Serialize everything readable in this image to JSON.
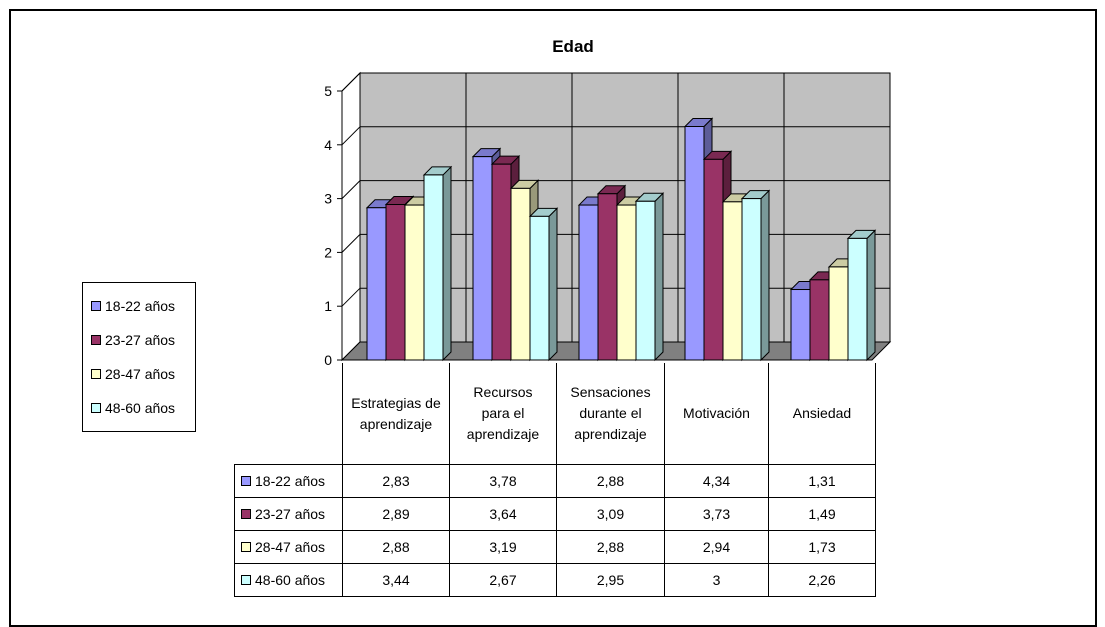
{
  "chart_data": {
    "type": "bar",
    "title": "Edad",
    "categories": [
      [
        "Estrategias de",
        "aprendizaje"
      ],
      [
        "Recursos",
        "para el",
        "aprendizaje"
      ],
      [
        "Sensaciones",
        "durante el",
        "aprendizaje"
      ],
      [
        "Motivación"
      ],
      [
        "Ansiedad"
      ]
    ],
    "ylim": [
      0,
      5
    ],
    "yticks": [
      "0",
      "1",
      "2",
      "3",
      "4",
      "5"
    ],
    "grid": true,
    "legend": "left",
    "series": [
      {
        "name": "18-22 años",
        "color": "#9999ff",
        "values": [
          2.83,
          3.78,
          2.88,
          4.34,
          1.31
        ],
        "labels": [
          "2,83",
          "3,78",
          "2,88",
          "4,34",
          "1,31"
        ]
      },
      {
        "name": "23-27 años",
        "color": "#993366",
        "values": [
          2.89,
          3.64,
          3.09,
          3.73,
          1.49
        ],
        "labels": [
          "2,89",
          "3,64",
          "3,09",
          "3,73",
          "1,49"
        ]
      },
      {
        "name": "28-47 años",
        "color": "#ffffcc",
        "values": [
          2.88,
          3.19,
          2.88,
          2.94,
          1.73
        ],
        "labels": [
          "2,88",
          "3,19",
          "2,88",
          "2,94",
          "1,73"
        ]
      },
      {
        "name": "48-60 años",
        "color": "#ccffff",
        "values": [
          3.44,
          2.67,
          2.95,
          3,
          2.26
        ],
        "labels": [
          "3,44",
          "2,67",
          "2,95",
          "3",
          "2,26"
        ]
      }
    ]
  }
}
